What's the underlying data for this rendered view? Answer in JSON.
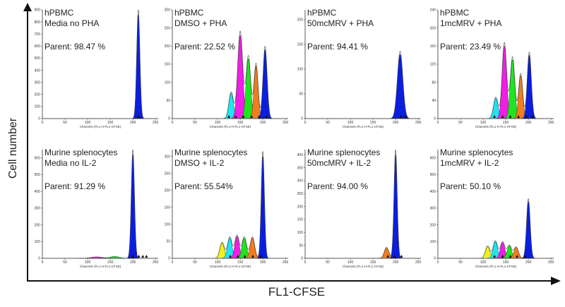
{
  "figure": {
    "ylabel": "Cell number",
    "xlabel": "FL1-CFSE"
  },
  "colors": {
    "blue": "#0a1ee0",
    "orange": "#f07d1e",
    "green": "#1ee61e",
    "magenta": "#f01ee6",
    "cyan": "#1ee6f0",
    "yellow": "#f0f01e",
    "purple": "#8c50d2",
    "envelope": "#444444"
  },
  "chart_data": [
    {
      "type": "area",
      "name": "hPBMC",
      "condition": "Media no PHA",
      "parent_label": "Parent: 98.47 %",
      "xlabel": "Channels (FL1-H-FL1-CFSE)",
      "xlim": [
        0,
        256
      ],
      "xticks": [
        "0",
        "50",
        "100",
        "150",
        "200",
        "250"
      ],
      "yticks": [
        "0",
        "100",
        "200",
        "300",
        "400",
        "500",
        "600",
        "700",
        "800",
        "900"
      ],
      "ylim": [
        0,
        900
      ],
      "peaks": [
        {
          "center": 212,
          "height": 860,
          "sd": 3.5,
          "color": "blue"
        }
      ],
      "markers": [
        212
      ]
    },
    {
      "type": "area",
      "name": "hPBMC",
      "condition": "DMSO + PHA",
      "parent_label": "Parent: 22.52 %",
      "xlabel": "Channels (FL1-H-FL1-CFSE)",
      "xlim": [
        0,
        256
      ],
      "xticks": [
        "0",
        "50",
        "100",
        "150",
        "200",
        "250"
      ],
      "yticks": [
        "0",
        "50",
        "100",
        "150",
        "200",
        "250",
        "300"
      ],
      "ylim": [
        0,
        300
      ],
      "peaks": [
        {
          "center": 130,
          "height": 70,
          "sd": 5,
          "color": "cyan"
        },
        {
          "center": 150,
          "height": 230,
          "sd": 5.5,
          "color": "magenta"
        },
        {
          "center": 168,
          "height": 165,
          "sd": 5,
          "color": "green"
        },
        {
          "center": 185,
          "height": 145,
          "sd": 4.5,
          "color": "orange"
        },
        {
          "center": 205,
          "height": 190,
          "sd": 4.5,
          "color": "blue"
        }
      ],
      "markers": [
        125,
        140,
        157,
        175,
        192,
        208
      ]
    },
    {
      "type": "area",
      "name": "hPBMC",
      "condition": "50mcMRV + PHA",
      "parent_label": "Parent: 94.41 %",
      "xlabel": "Channels (FL1-H-FL1-CFSE)",
      "xlim": [
        0,
        256
      ],
      "xticks": [
        "0",
        "50",
        "100",
        "150",
        "200",
        "250"
      ],
      "yticks": [
        "0",
        "50",
        "100",
        "150",
        "200"
      ],
      "ylim": [
        0,
        220
      ],
      "peaks": [
        {
          "center": 210,
          "height": 130,
          "sd": 6,
          "color": "blue"
        }
      ],
      "markers": [
        212,
        222
      ]
    },
    {
      "type": "area",
      "name": "hPBMC",
      "condition": "1mcMRV + PHA",
      "parent_label": "Parent: 23.49 %",
      "xlabel": "Channels (FL1-H-FL1-CFSE)",
      "xlim": [
        0,
        256
      ],
      "xticks": [
        "0",
        "50",
        "100",
        "150",
        "200",
        "250"
      ],
      "yticks": [
        "0",
        "40",
        "80",
        "120",
        "160",
        "200",
        "240"
      ],
      "ylim": [
        0,
        240
      ],
      "peaks": [
        {
          "center": 128,
          "height": 45,
          "sd": 5,
          "color": "cyan"
        },
        {
          "center": 147,
          "height": 160,
          "sd": 5,
          "color": "magenta"
        },
        {
          "center": 165,
          "height": 130,
          "sd": 5,
          "color": "green"
        },
        {
          "center": 183,
          "height": 95,
          "sd": 4.5,
          "color": "orange"
        },
        {
          "center": 202,
          "height": 140,
          "sd": 4.5,
          "color": "blue"
        }
      ],
      "markers": [
        125,
        143,
        160,
        178,
        195,
        210
      ]
    },
    {
      "type": "area",
      "name": "Murine splenocytes",
      "condition": "Media no IL-2",
      "parent_label": "Parent: 91.29 %",
      "xlabel": "Channels (FL1-H-FL1-CFSE)",
      "xlim": [
        0,
        256
      ],
      "xticks": [
        "0",
        "50",
        "100",
        "150",
        "200",
        "250"
      ],
      "yticks": [
        "0",
        "100",
        "200",
        "300",
        "400",
        "500",
        "600"
      ],
      "ylim": [
        0,
        650
      ],
      "peaks": [
        {
          "center": 120,
          "height": 8,
          "sd": 12,
          "color": "magenta"
        },
        {
          "center": 160,
          "height": 10,
          "sd": 10,
          "color": "green"
        },
        {
          "center": 200,
          "height": 620,
          "sd": 3.5,
          "color": "blue"
        }
      ],
      "markers": [
        200,
        213,
        222,
        230
      ]
    },
    {
      "type": "area",
      "name": "Murine splenocytes",
      "condition": "DMSO + IL-2",
      "parent_label": "Parent: 55.54%",
      "xlabel": "Channels (FL1-H-FL1-CFSE)",
      "xlim": [
        0,
        256
      ],
      "xticks": [
        "0",
        "50",
        "100",
        "150",
        "200",
        "250"
      ],
      "yticks": [
        "0",
        "50",
        "100",
        "150",
        "200",
        "250",
        "300"
      ],
      "ylim": [
        0,
        320
      ],
      "peaks": [
        {
          "center": 110,
          "height": 45,
          "sd": 5,
          "color": "yellow"
        },
        {
          "center": 127,
          "height": 60,
          "sd": 5,
          "color": "cyan"
        },
        {
          "center": 143,
          "height": 65,
          "sd": 5,
          "color": "magenta"
        },
        {
          "center": 159,
          "height": 60,
          "sd": 5,
          "color": "green"
        },
        {
          "center": 177,
          "height": 60,
          "sd": 5,
          "color": "orange"
        },
        {
          "center": 200,
          "height": 300,
          "sd": 3.5,
          "color": "blue"
        }
      ],
      "markers": [
        128,
        145,
        160,
        178,
        196
      ]
    },
    {
      "type": "area",
      "name": "Murine splenocytes",
      "condition": "50mcMRV + IL-2",
      "parent_label": "Parent: 94.00 %",
      "xlabel": "Channels (FL1-H-FL1-CFSE)",
      "xlim": [
        0,
        256
      ],
      "xticks": [
        "0",
        "50",
        "100",
        "150",
        "200",
        "250"
      ],
      "yticks": [
        "0",
        "50",
        "100",
        "150",
        "200",
        "250",
        "300",
        "350",
        "400"
      ],
      "ylim": [
        0,
        420
      ],
      "peaks": [
        {
          "center": 180,
          "height": 40,
          "sd": 5,
          "color": "orange"
        },
        {
          "center": 200,
          "height": 400,
          "sd": 3.5,
          "color": "blue"
        }
      ],
      "markers": [
        183,
        198,
        213
      ]
    },
    {
      "type": "area",
      "name": "Murine splenocytes",
      "condition": "1mcMRV + IL-2",
      "parent_label": "Parent: 50.10 %",
      "xlabel": "Channels (FL1-H-FL1-CFSE)",
      "xlim": [
        0,
        256
      ],
      "xticks": [
        "0",
        "50",
        "100",
        "150",
        "200",
        "250"
      ],
      "yticks": [
        "0",
        "100",
        "200",
        "300",
        "400",
        "500",
        "600"
      ],
      "ylim": [
        0,
        650
      ],
      "peaks": [
        {
          "center": 110,
          "height": 70,
          "sd": 5,
          "color": "yellow"
        },
        {
          "center": 127,
          "height": 100,
          "sd": 5,
          "color": "cyan"
        },
        {
          "center": 143,
          "height": 95,
          "sd": 5,
          "color": "magenta"
        },
        {
          "center": 158,
          "height": 75,
          "sd": 5,
          "color": "green"
        },
        {
          "center": 173,
          "height": 65,
          "sd": 5,
          "color": "orange"
        },
        {
          "center": 200,
          "height": 340,
          "sd": 4,
          "color": "blue"
        }
      ],
      "markers": [
        125,
        143,
        160,
        175,
        193
      ]
    }
  ]
}
